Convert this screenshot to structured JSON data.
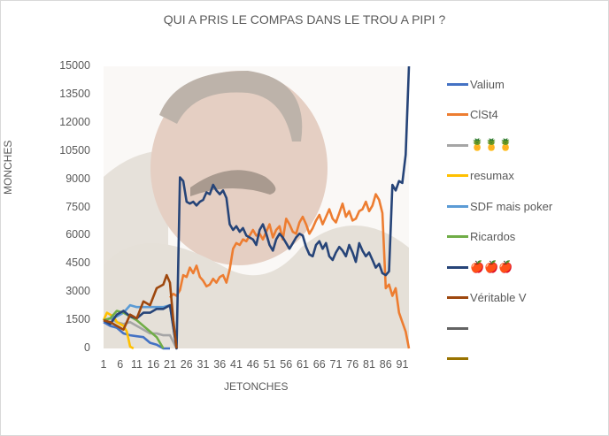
{
  "chart_data": {
    "type": "line",
    "title": "QUI A PRIS LE COMPAS DANS LE TROU A PIPI ?",
    "xlabel": "JETONCHES",
    "ylabel": "MONCHES",
    "ylim": [
      0,
      15000
    ],
    "yticks": [
      "0",
      "1500",
      "3000",
      "4500",
      "6000",
      "7500",
      "9000",
      "10500",
      "12000",
      "13500",
      "15000"
    ],
    "xticks": [
      "1",
      "6",
      "11",
      "16",
      "21",
      "26",
      "31",
      "36",
      "41",
      "46",
      "51",
      "56",
      "61",
      "66",
      "71",
      "76",
      "81",
      "86",
      "91"
    ],
    "xlim": [
      1,
      93
    ],
    "legend_position": "right",
    "series": [
      {
        "name": "Valium",
        "color": "#4472c4",
        "x": [
          1,
          3,
          5,
          7,
          9,
          11,
          13,
          15,
          17,
          19,
          21
        ],
        "values": [
          1400,
          1200,
          1100,
          800,
          700,
          650,
          600,
          300,
          200,
          0,
          0
        ]
      },
      {
        "name": "ClSt4",
        "color": "#ed7d31",
        "x": [
          21,
          22,
          23,
          24,
          25,
          26,
          27,
          28,
          29,
          30,
          31,
          32,
          33,
          34,
          35,
          36,
          37,
          38,
          39,
          40,
          41,
          42,
          43,
          44,
          45,
          46,
          47,
          48,
          49,
          50,
          51,
          52,
          53,
          54,
          55,
          56,
          57,
          58,
          59,
          60,
          61,
          62,
          63,
          64,
          65,
          66,
          67,
          68,
          69,
          70,
          71,
          72,
          73,
          74,
          75,
          76,
          77,
          78,
          79,
          80,
          81,
          82,
          83,
          84,
          85,
          86,
          87,
          88,
          89,
          90,
          91,
          92,
          93
        ],
        "values": [
          2700,
          2900,
          2800,
          3100,
          3900,
          3800,
          4300,
          4000,
          4400,
          3800,
          3600,
          3300,
          3400,
          3700,
          3500,
          3800,
          3900,
          3500,
          4200,
          5300,
          5600,
          5500,
          5800,
          5700,
          6000,
          6300,
          6000,
          6100,
          5800,
          6200,
          6600,
          5900,
          6300,
          6500,
          5800,
          6900,
          6600,
          6200,
          6100,
          6700,
          7000,
          6600,
          6100,
          6400,
          6800,
          7100,
          6600,
          7000,
          7400,
          6900,
          6700,
          7200,
          7700,
          7000,
          7300,
          6800,
          6900,
          7300,
          7400,
          7800,
          7300,
          7600,
          8200,
          7900,
          7200,
          3200,
          3400,
          2800,
          3200,
          1900,
          1400,
          900,
          0
        ]
      },
      {
        "name": "🍍🍍🍍",
        "color": "#a5a5a5",
        "x": [
          1,
          3,
          5,
          7,
          9,
          11,
          13,
          15,
          17,
          19,
          21,
          23
        ],
        "values": [
          1500,
          1600,
          1400,
          1300,
          1400,
          1200,
          1000,
          800,
          800,
          700,
          700,
          0
        ]
      },
      {
        "name": "resumax",
        "color": "#ffc000",
        "x": [
          1,
          2,
          3,
          4,
          5,
          6,
          7,
          8,
          9,
          10
        ],
        "values": [
          1500,
          1900,
          1800,
          1700,
          1400,
          1300,
          1200,
          900,
          100,
          0
        ]
      },
      {
        "name": "SDF mais poker",
        "color": "#5b9bd5",
        "x": [
          1,
          3,
          5,
          7,
          9,
          11,
          13,
          15,
          17,
          19,
          21,
          23
        ],
        "values": [
          1500,
          1600,
          1700,
          1900,
          2300,
          2200,
          2200,
          2200,
          2200,
          2200,
          2300,
          0
        ]
      },
      {
        "name": "Ricardos",
        "color": "#70ad47",
        "x": [
          1,
          3,
          5,
          7,
          9,
          11,
          13,
          15,
          17,
          19
        ],
        "values": [
          1500,
          1600,
          2000,
          1900,
          1700,
          1500,
          1200,
          900,
          600,
          0
        ]
      },
      {
        "name": "🍎🍎🍎",
        "color": "#264478",
        "x": [
          1,
          3,
          5,
          7,
          9,
          11,
          13,
          15,
          17,
          19,
          21,
          23,
          24,
          25,
          26,
          27,
          28,
          29,
          30,
          31,
          32,
          33,
          34,
          35,
          36,
          37,
          38,
          39,
          40,
          41,
          42,
          43,
          44,
          45,
          46,
          47,
          48,
          49,
          50,
          51,
          52,
          53,
          54,
          55,
          56,
          57,
          58,
          59,
          60,
          61,
          62,
          63,
          64,
          65,
          66,
          67,
          68,
          69,
          70,
          71,
          72,
          73,
          74,
          75,
          76,
          77,
          78,
          79,
          80,
          81,
          82,
          83,
          84,
          85,
          86,
          87,
          88,
          89,
          90,
          91,
          92,
          93
        ],
        "values": [
          1500,
          1300,
          1800,
          2000,
          1700,
          1600,
          1900,
          1900,
          2100,
          2100,
          2300,
          0,
          9100,
          8900,
          7800,
          7700,
          7800,
          7600,
          7800,
          7900,
          8300,
          8200,
          8700,
          8400,
          8200,
          8400,
          8000,
          6600,
          6300,
          6500,
          6200,
          6400,
          6000,
          5900,
          5800,
          5500,
          6300,
          6600,
          6100,
          5500,
          5200,
          5800,
          6100,
          5900,
          5600,
          5300,
          5600,
          5900,
          6100,
          6000,
          5400,
          5000,
          4900,
          5500,
          5700,
          5300,
          5600,
          4900,
          4700,
          5100,
          5400,
          5200,
          4900,
          5500,
          5100,
          4600,
          5600,
          5200,
          4900,
          5100,
          4700,
          4300,
          4500,
          4000,
          3900,
          4100,
          8700,
          8400,
          8900,
          8800,
          10300,
          15000
        ]
      },
      {
        "name": "Véritable V",
        "color": "#9e480e",
        "x": [
          1,
          3,
          5,
          7,
          9,
          11,
          13,
          15,
          17,
          19,
          20,
          21,
          22,
          23
        ],
        "values": [
          1500,
          1400,
          1200,
          1000,
          1800,
          1600,
          2500,
          2300,
          3200,
          3400,
          3900,
          3500,
          1500,
          0
        ]
      },
      {
        "name": "",
        "color": "#636363",
        "x": [],
        "values": []
      },
      {
        "name": "",
        "color": "#997300",
        "x": [],
        "values": []
      }
    ]
  }
}
